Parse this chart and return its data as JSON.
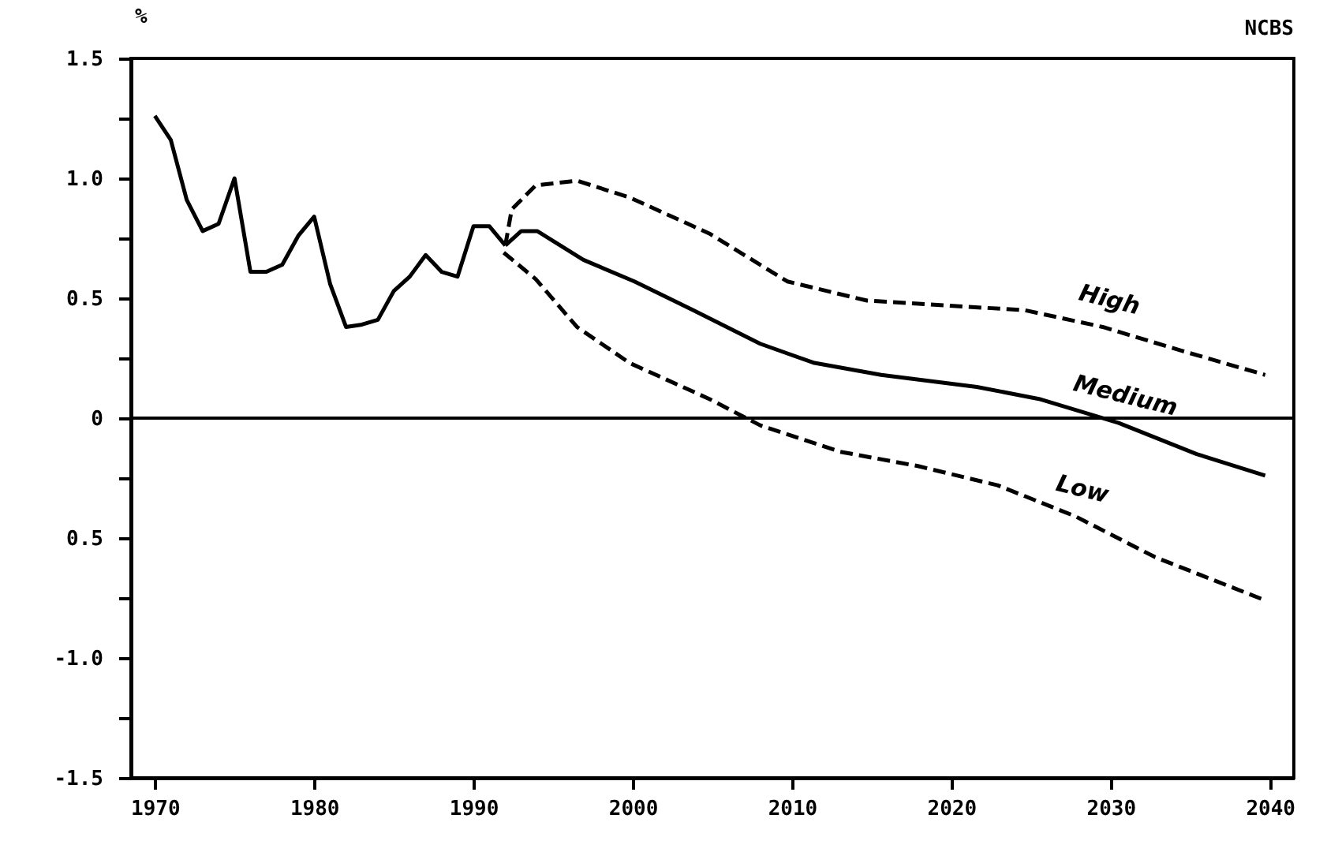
{
  "chart_data": {
    "type": "line",
    "ylabel": "%",
    "annotations": [
      "NCBS"
    ],
    "xlim": [
      1968.5,
      2041.5
    ],
    "xticks": [
      1970,
      1980,
      1990,
      2000,
      2010,
      2020,
      2030,
      2040
    ],
    "ylim": [
      -1.5,
      1.5
    ],
    "yticks": [
      {
        "value": 1.5,
        "label": "1.5"
      },
      {
        "value": 1.25,
        "label": null
      },
      {
        "value": 1.0,
        "label": "1.0"
      },
      {
        "value": 0.75,
        "label": null
      },
      {
        "value": 0.5,
        "label": "0.5"
      },
      {
        "value": 0.25,
        "label": null
      },
      {
        "value": 0,
        "label": "0"
      },
      {
        "value": -0.25,
        "label": null
      },
      {
        "value": -0.5,
        "label": "0.5"
      },
      {
        "value": -0.75,
        "label": null
      },
      {
        "value": -1.0,
        "label": "-1.0"
      },
      {
        "value": -1.25,
        "label": null
      },
      {
        "value": -1.5,
        "label": "-1.5"
      }
    ],
    "grid": false,
    "ref_lines": [
      {
        "axis": "y",
        "value": 0,
        "color": "#000000"
      }
    ],
    "series": [
      {
        "color": "#000000",
        "line_style": "solid",
        "x": [
          1970,
          1971,
          1972,
          1973,
          1974,
          1975,
          1976,
          1977,
          1978,
          1979,
          1980,
          1981,
          1982,
          1983,
          1984,
          1985,
          1986,
          1987,
          1988,
          1989,
          1990,
          1991,
          1992
        ],
        "values": [
          1.26,
          1.16,
          0.91,
          0.78,
          0.81,
          1.0,
          0.61,
          0.61,
          0.64,
          0.76,
          0.84,
          0.56,
          0.38,
          0.39,
          0.41,
          0.53,
          0.59,
          0.68,
          0.61,
          0.59,
          0.8,
          0.8,
          0.72
        ]
      },
      {
        "name": "Medium",
        "color": "#000000",
        "line_style": "solid",
        "x": [
          1992,
          1993,
          1994,
          1996.9,
          2000.1,
          2003.8,
          2008,
          2011.4,
          2015.6,
          2021.6,
          2025.5,
          2030.5,
          2035.4,
          2039.7
        ],
        "values": [
          0.72,
          0.78,
          0.78,
          0.66,
          0.57,
          0.45,
          0.31,
          0.23,
          0.18,
          0.13,
          0.08,
          -0.02,
          -0.15,
          -0.24
        ]
      },
      {
        "name": "High",
        "color": "#000000",
        "line_style": "dashed",
        "x": [
          1992,
          1992.4,
          1993.9,
          1996.5,
          1999.8,
          2004.8,
          2009.7,
          2014.7,
          2019.6,
          2024.6,
          2029.5,
          2034.5,
          2039.7
        ],
        "values": [
          0.72,
          0.87,
          0.97,
          0.99,
          0.92,
          0.77,
          0.57,
          0.49,
          0.47,
          0.45,
          0.38,
          0.28,
          0.18
        ]
      },
      {
        "name": "Low",
        "color": "#000000",
        "line_style": "dashed",
        "x": [
          1991.9,
          1993.9,
          1996.5,
          1999.8,
          2004.8,
          2008,
          2013,
          2017.9,
          2022.9,
          2027.8,
          2032.8,
          2039.7
        ],
        "values": [
          0.69,
          0.58,
          0.38,
          0.23,
          0.08,
          -0.03,
          -0.14,
          -0.2,
          -0.28,
          -0.41,
          -0.58,
          -0.76
        ]
      }
    ]
  }
}
